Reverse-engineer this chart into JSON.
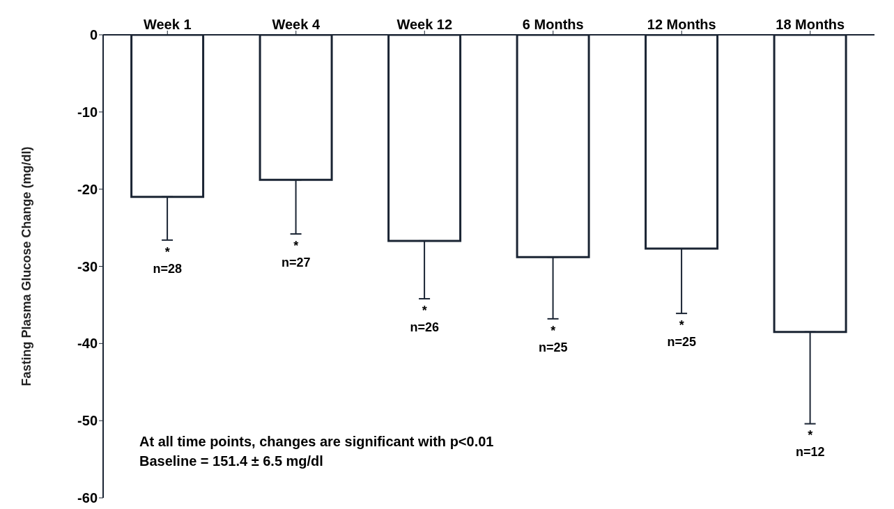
{
  "chart_data": {
    "type": "bar",
    "ylabel": "Fasting Plasma Glucose Change (mg/dl)",
    "categories": [
      "Week 1",
      "Week 4",
      "Week 12",
      "6 Months",
      "12 Months",
      "18 Months"
    ],
    "values": [
      -21,
      -18.8,
      -26.7,
      -28.8,
      -27.7,
      -38.5
    ],
    "errors": [
      [
        -26.6,
        -21
      ],
      [
        -25.8,
        -18.8
      ],
      [
        -34.2,
        -26.7
      ],
      [
        -36.8,
        -28.8
      ],
      [
        -36.1,
        -27.7
      ],
      [
        -50.4,
        -38.5
      ]
    ],
    "color": "#ffffff",
    "ylim": [
      -60,
      0
    ],
    "yticks": [
      -60,
      -50,
      -40,
      -30,
      -20,
      -10,
      0
    ],
    "grid": false,
    "legend": false,
    "annotations": [
      {
        "text": "*",
        "x": "Week 1",
        "y": -26.6
      },
      {
        "text": "n=28",
        "x": "Week 1",
        "y": -26.6
      },
      {
        "text": "*",
        "x": "Week 4",
        "y": -25.8
      },
      {
        "text": "n=27",
        "x": "Week 4",
        "y": -25.8
      },
      {
        "text": "*",
        "x": "Week 12",
        "y": -34.2
      },
      {
        "text": "n=26",
        "x": "Week 12",
        "y": -34.2
      },
      {
        "text": "*",
        "x": "6 Months",
        "y": -36.8
      },
      {
        "text": "n=25",
        "x": "6 Months",
        "y": -36.8
      },
      {
        "text": "*",
        "x": "12 Months",
        "y": -36.1
      },
      {
        "text": "n=25",
        "x": "12 Months",
        "y": -36.1
      },
      {
        "text": "*",
        "x": "18 Months",
        "y": -50.4
      },
      {
        "text": "n=12",
        "x": "18 Months",
        "y": -50.4
      },
      "At all time points, changes are significant with p<0.01",
      "Baseline = 151.4 ± 6.5 mg/dl"
    ]
  }
}
